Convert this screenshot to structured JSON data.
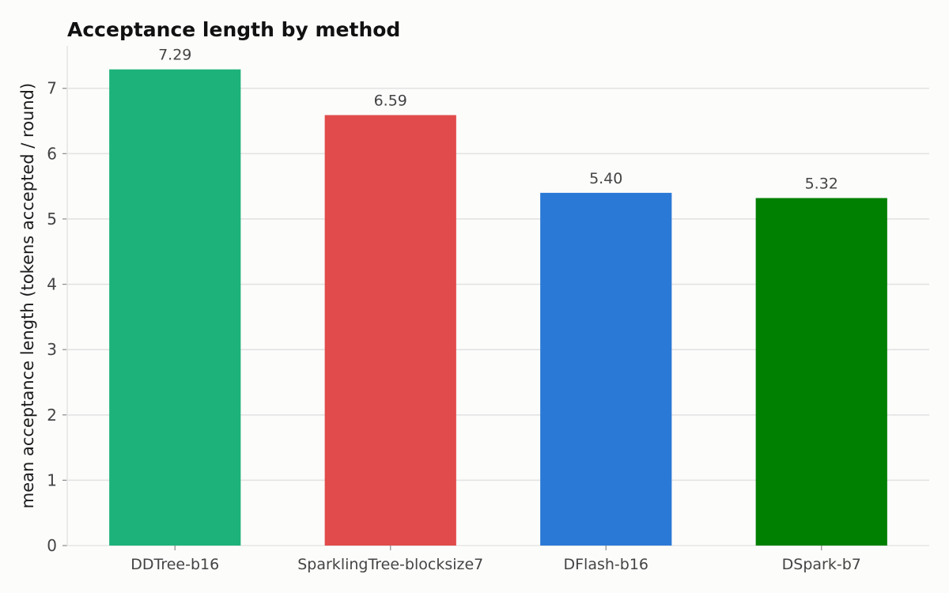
{
  "chart_data": {
    "type": "bar",
    "title": "Acceptance length by method",
    "xlabel": "",
    "ylabel": "mean acceptance length (tokens accepted / round)",
    "categories": [
      "DDTree-b16",
      "SparklingTree-blocksize7",
      "DFlash-b16",
      "DSpark-b7"
    ],
    "values": [
      7.29,
      6.59,
      5.4,
      5.32
    ],
    "value_labels": [
      "7.29",
      "6.59",
      "5.40",
      "5.32"
    ],
    "colors": [
      "#1db27a",
      "#e24b4b",
      "#2b79d6",
      "#008000"
    ],
    "ylim": [
      0,
      7.65
    ],
    "yticks": [
      0,
      1,
      2,
      3,
      4,
      5,
      6,
      7
    ],
    "ytick_labels": [
      "0",
      "1",
      "2",
      "3",
      "4",
      "5",
      "6",
      "7"
    ],
    "grid": "horizontal",
    "legend": "none"
  }
}
